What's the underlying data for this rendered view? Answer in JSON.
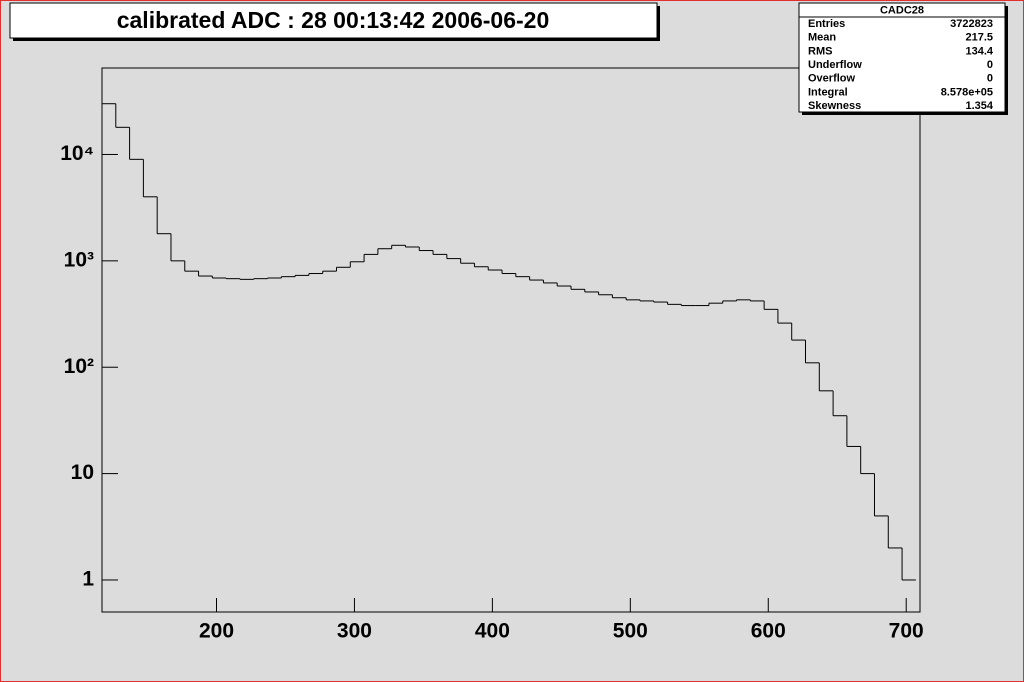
{
  "chart_data": {
    "type": "histogram",
    "title": "calibrated ADC :  28  00:13:42  2006-06-20",
    "bins": [
      117,
      127,
      137,
      147,
      157,
      167,
      177,
      187,
      197,
      207,
      217,
      227,
      237,
      247,
      257,
      267,
      277,
      287,
      297,
      307,
      317,
      327,
      337,
      347,
      357,
      367,
      377,
      387,
      397,
      407,
      417,
      427,
      437,
      447,
      457,
      467,
      477,
      487,
      497,
      507,
      517,
      527,
      537,
      547,
      557,
      567,
      577,
      587,
      597,
      607,
      617,
      627,
      637,
      647,
      657,
      667,
      677,
      687,
      697,
      707
    ],
    "values": [
      30000,
      18000,
      9000,
      4000,
      1800,
      1000,
      800,
      720,
      690,
      680,
      670,
      680,
      690,
      710,
      730,
      760,
      800,
      870,
      980,
      1150,
      1300,
      1400,
      1350,
      1250,
      1150,
      1050,
      950,
      880,
      820,
      760,
      710,
      660,
      620,
      580,
      540,
      510,
      480,
      450,
      430,
      420,
      410,
      390,
      380,
      380,
      400,
      420,
      430,
      420,
      350,
      260,
      180,
      110,
      60,
      35,
      18,
      10,
      4,
      2,
      1
    ],
    "color": "#000000",
    "log_scale_y": true,
    "xlim": [
      117,
      710
    ],
    "ylim": [
      0.5,
      65000
    ],
    "xticks": [
      200,
      300,
      400,
      500,
      600,
      700
    ],
    "yticks": [
      1,
      10,
      {
        "value": 100,
        "label": "10²"
      },
      {
        "value": 1000,
        "label": "10³"
      },
      {
        "value": 10000,
        "label": "10⁴"
      }
    ],
    "stats_box": {
      "title": "CADC28",
      "rows": [
        {
          "label": "Entries",
          "value": "3722823"
        },
        {
          "label": "Mean",
          "value": "217.5"
        },
        {
          "label": "RMS",
          "value": "134.4"
        },
        {
          "label": "Underflow",
          "value": "0"
        },
        {
          "label": "Overflow",
          "value": "0"
        },
        {
          "label": "Integral",
          "value": "8.578e+05"
        },
        {
          "label": "Skewness",
          "value": "1.354"
        }
      ]
    }
  }
}
